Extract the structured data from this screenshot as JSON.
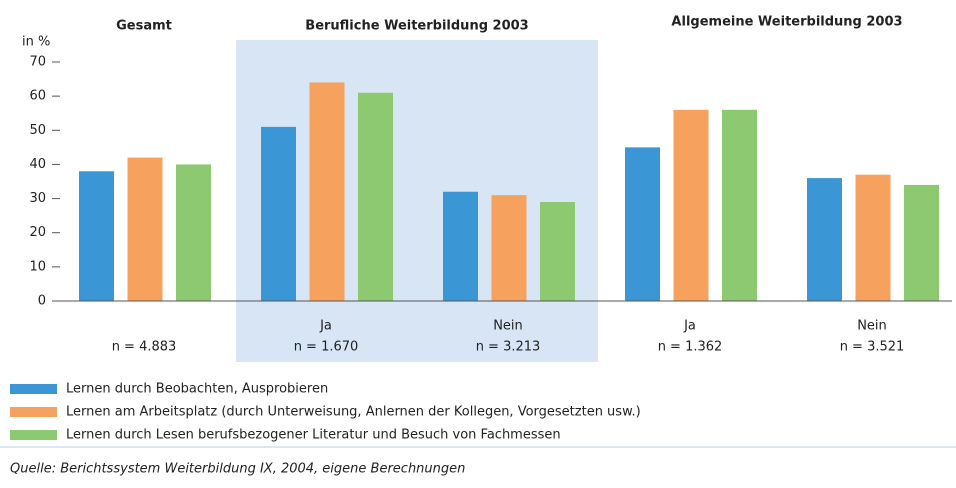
{
  "chart_data": {
    "type": "bar",
    "y_label": "in %",
    "sections": [
      "Gesamt",
      "Berufliche Weiterbildung 2003",
      "Allgemeine Weiterbildung 2003"
    ],
    "categories": [
      null,
      "Ja",
      "Nein",
      "Ja",
      "Nein"
    ],
    "n_labels": [
      "n = 4.883",
      "n = 1.670",
      "n = 3.213",
      "n = 1.362",
      "n = 3.521"
    ],
    "series": [
      {
        "name": "Lernen durch Beobachten, Ausprobieren",
        "color": "#3a96d4",
        "values": [
          38,
          51,
          32,
          45,
          36
        ]
      },
      {
        "name": "Lernen am Arbeitsplatz (durch Unterweisung, Anlernen der Kollegen, Vorgesetzten usw.)",
        "color": "#f6a25e",
        "values": [
          42,
          64,
          31,
          56,
          37
        ]
      },
      {
        "name": "Lernen durch Lesen berufsbezogener Literatur und Besuch von Fachmessen",
        "color": "#8dc971",
        "values": [
          40,
          61,
          29,
          56,
          34
        ]
      }
    ],
    "ylim": [
      0,
      70
    ],
    "yticks": [
      0,
      10,
      20,
      30,
      40,
      50,
      60,
      70
    ],
    "source": "Quelle: Berichtssystem Weiterbildung IX, 2004, eigene Berechnungen"
  }
}
